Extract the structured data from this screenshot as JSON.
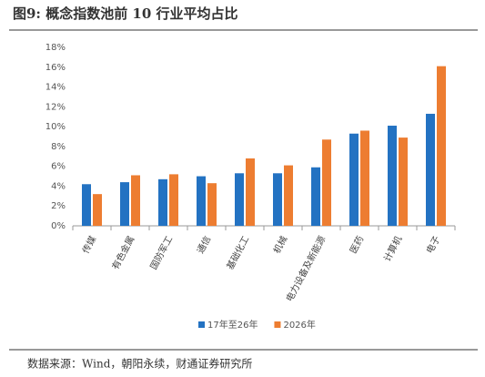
{
  "chart_data": {
    "type": "bar",
    "title": "图9: 概念指数池前 10 行业平均占比",
    "source": "数据来源：Wind，朝阳永续，财通证券研究所",
    "categories": [
      "传媒",
      "有色金属",
      "国防军工",
      "通信",
      "基础化工",
      "机械",
      "电力设备及新能源",
      "医药",
      "计算机",
      "电子"
    ],
    "series": [
      {
        "name": "17年至26年",
        "color": "#2372c2",
        "values": [
          4.2,
          4.4,
          4.7,
          5.0,
          5.3,
          5.3,
          5.9,
          9.3,
          10.1,
          11.3
        ]
      },
      {
        "name": "2026年",
        "color": "#ed7d31",
        "values": [
          3.2,
          5.1,
          5.2,
          4.3,
          6.8,
          6.1,
          8.7,
          9.6,
          8.9,
          16.1
        ]
      }
    ],
    "ylim": [
      0,
      18
    ],
    "yticks": [
      {
        "value": 0,
        "label": "0%"
      },
      {
        "value": 2,
        "label": "2%"
      },
      {
        "value": 4,
        "label": "4%"
      },
      {
        "value": 6,
        "label": "6%"
      },
      {
        "value": 8,
        "label": "8%"
      },
      {
        "value": 10,
        "label": "10%"
      },
      {
        "value": 12,
        "label": "12%"
      },
      {
        "value": 14,
        "label": "14%"
      },
      {
        "value": 16,
        "label": "16%"
      },
      {
        "value": 18,
        "label": "18%"
      }
    ],
    "legend": "bottom"
  }
}
